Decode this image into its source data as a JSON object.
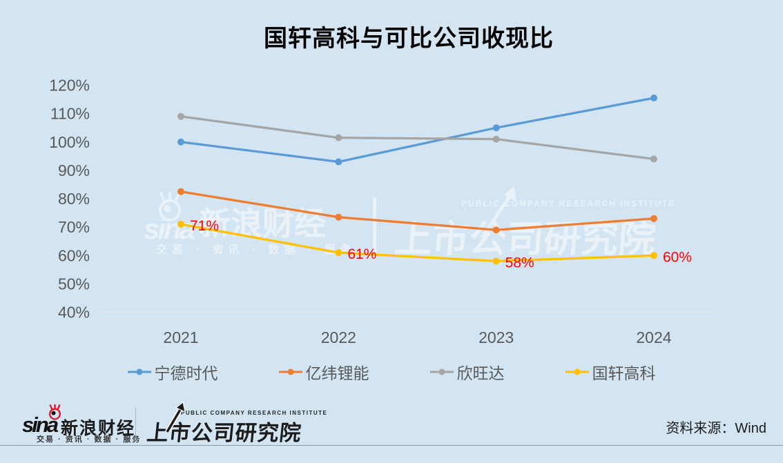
{
  "title": "国轩高科与可比公司收现比",
  "source_note": "资料来源：Wind",
  "colors": {
    "background": "#D3E5F2",
    "axis_text": "#595959",
    "data_label": "#FF0000",
    "sina_red": "#E6162D",
    "baseline": "#E8E8E8"
  },
  "chart_data": {
    "type": "line",
    "title": "国轩高科与可比公司收现比",
    "categories": [
      "2021",
      "2022",
      "2023",
      "2024"
    ],
    "series": [
      {
        "name": "宁德时代",
        "color": "#5B9BD5",
        "values": [
          100,
          93,
          105,
          115.5
        ]
      },
      {
        "name": "亿纬锂能",
        "color": "#ED7D31",
        "values": [
          82.5,
          73.5,
          69,
          73
        ]
      },
      {
        "name": "欣旺达",
        "color": "#A5A5A5",
        "values": [
          109,
          101.5,
          101,
          94
        ]
      },
      {
        "name": "国轩高科",
        "color": "#FFC000",
        "values": [
          71,
          61,
          58,
          60
        ],
        "data_labels": [
          "71%",
          "61%",
          "58%",
          "60%"
        ],
        "label_color": "#FF0000"
      }
    ],
    "ylim": [
      40,
      120
    ],
    "ytick_step": 10,
    "ytick_suffix": "%",
    "grid": false,
    "legend_position": "bottom"
  },
  "watermark": {
    "sina_logo": "sina",
    "sina_brand": "新浪财经",
    "sina_tagline": "交易 · 资讯 · 数据 · 服务",
    "institute_caption": "PUBLIC COMPANY RESEARCH INSTITUTE",
    "institute_name": "上市公司研究院"
  },
  "footer": {
    "sina_logo": "sina",
    "sina_brand": "新浪财经",
    "sina_tagline": "交易 · 资讯 · 数据 · 服务",
    "institute_caption": "PUBLIC COMPANY RESEARCH INSTITUTE",
    "institute_name": "上市公司研究院"
  }
}
